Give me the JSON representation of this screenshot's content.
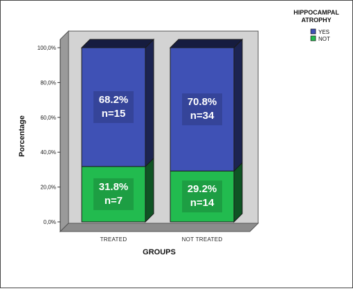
{
  "chart_data": {
    "type": "bar",
    "stacked": true,
    "categories": [
      "TREATED",
      "NOT TREATED"
    ],
    "series": [
      {
        "name": "YES",
        "color": "#3f51b5",
        "values": [
          68.2,
          70.8
        ],
        "labels": [
          [
            "68.2%",
            "n=15"
          ],
          [
            "70.8%",
            "n=34"
          ]
        ]
      },
      {
        "name": "NOT",
        "color": "#22bb4f",
        "values": [
          31.8,
          29.2
        ],
        "labels": [
          [
            "31.8%",
            "n=7"
          ],
          [
            "29.2%",
            "n=14"
          ]
        ]
      }
    ],
    "xlabel": "GROUPS",
    "ylabel": "Porcentage",
    "ylim": [
      0,
      100
    ],
    "yticks": [
      "0,0%",
      "20,0%",
      "40,0%",
      "60,0%",
      "80,0%",
      "100,0%"
    ],
    "legend": {
      "title_lines": [
        "HIPPOCAMPAL",
        "ATROPHY"
      ],
      "placement": "top-right"
    },
    "background_color": "#d3d3d3",
    "grid": false
  }
}
